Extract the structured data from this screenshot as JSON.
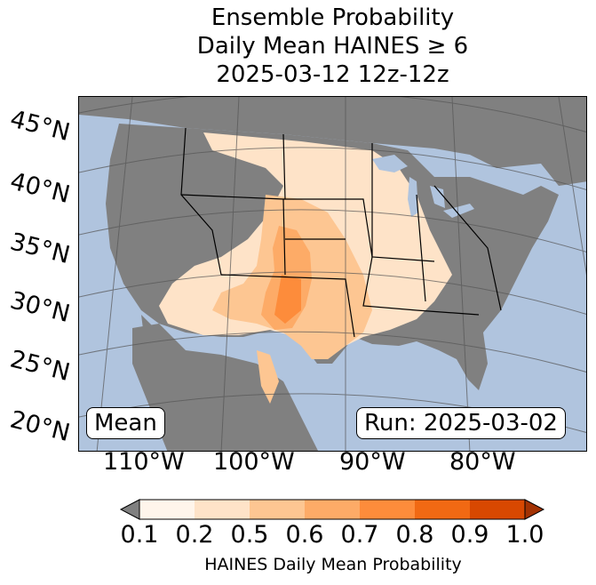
{
  "title": {
    "line1": "Ensemble Probability",
    "line2": "Daily Mean HAINES ≥ 6",
    "line3": "2025-03-12 12z-12z"
  },
  "map": {
    "latitude_labels": [
      "45°N",
      "40°N",
      "35°N",
      "30°N",
      "25°N",
      "20°N"
    ],
    "longitude_labels": [
      "110°W",
      "100°W",
      "90°W",
      "80°W"
    ],
    "left_box": "Mean",
    "right_box": "Run: 2025-03-02",
    "colors": {
      "ocean": "#b0c4de",
      "masked_land": "#808080",
      "border": "#000000"
    }
  },
  "colorbar": {
    "ticks": [
      "0.1",
      "0.2",
      "0.5",
      "0.6",
      "0.7",
      "0.8",
      "0.9",
      "1.0"
    ],
    "label": "HAINES Daily Mean Probability",
    "under_color": "#808080",
    "colors": [
      "#fff5eb",
      "#fee3c8",
      "#fdc692",
      "#fdab67",
      "#fd8c3b",
      "#f16913",
      "#d84801",
      "#a33203"
    ]
  }
}
